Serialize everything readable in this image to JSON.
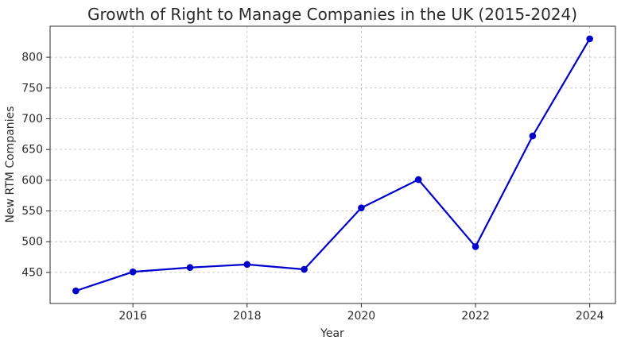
{
  "chart_data": {
    "type": "line",
    "title": "Growth of Right to Manage Companies in the UK (2015-2024)",
    "xlabel": "Year",
    "ylabel": "New RTM Companies",
    "x": [
      2015,
      2016,
      2017,
      2018,
      2019,
      2020,
      2021,
      2022,
      2023,
      2024
    ],
    "series": [
      {
        "name": "New RTM Companies",
        "values": [
          420,
          451,
          458,
          463,
          455,
          555,
          601,
          492,
          672,
          830
        ]
      }
    ],
    "xticks": [
      2016,
      2018,
      2020,
      2022,
      2024
    ],
    "yticks": [
      450,
      500,
      550,
      600,
      650,
      700,
      750,
      800
    ],
    "xlim": [
      2014.55,
      2024.45
    ],
    "ylim": [
      399.5,
      850.5
    ],
    "grid": true,
    "grid_style": "dashed",
    "legend_position": "none",
    "marker": "circle",
    "line_width": 2.2,
    "marker_radius": 4.3,
    "colors": {
      "line": "#0000CD",
      "grid": "#C9C9C9",
      "spine": "#2B2B2B",
      "text": "#2B2B2B",
      "background": "#FFFFFF"
    }
  }
}
